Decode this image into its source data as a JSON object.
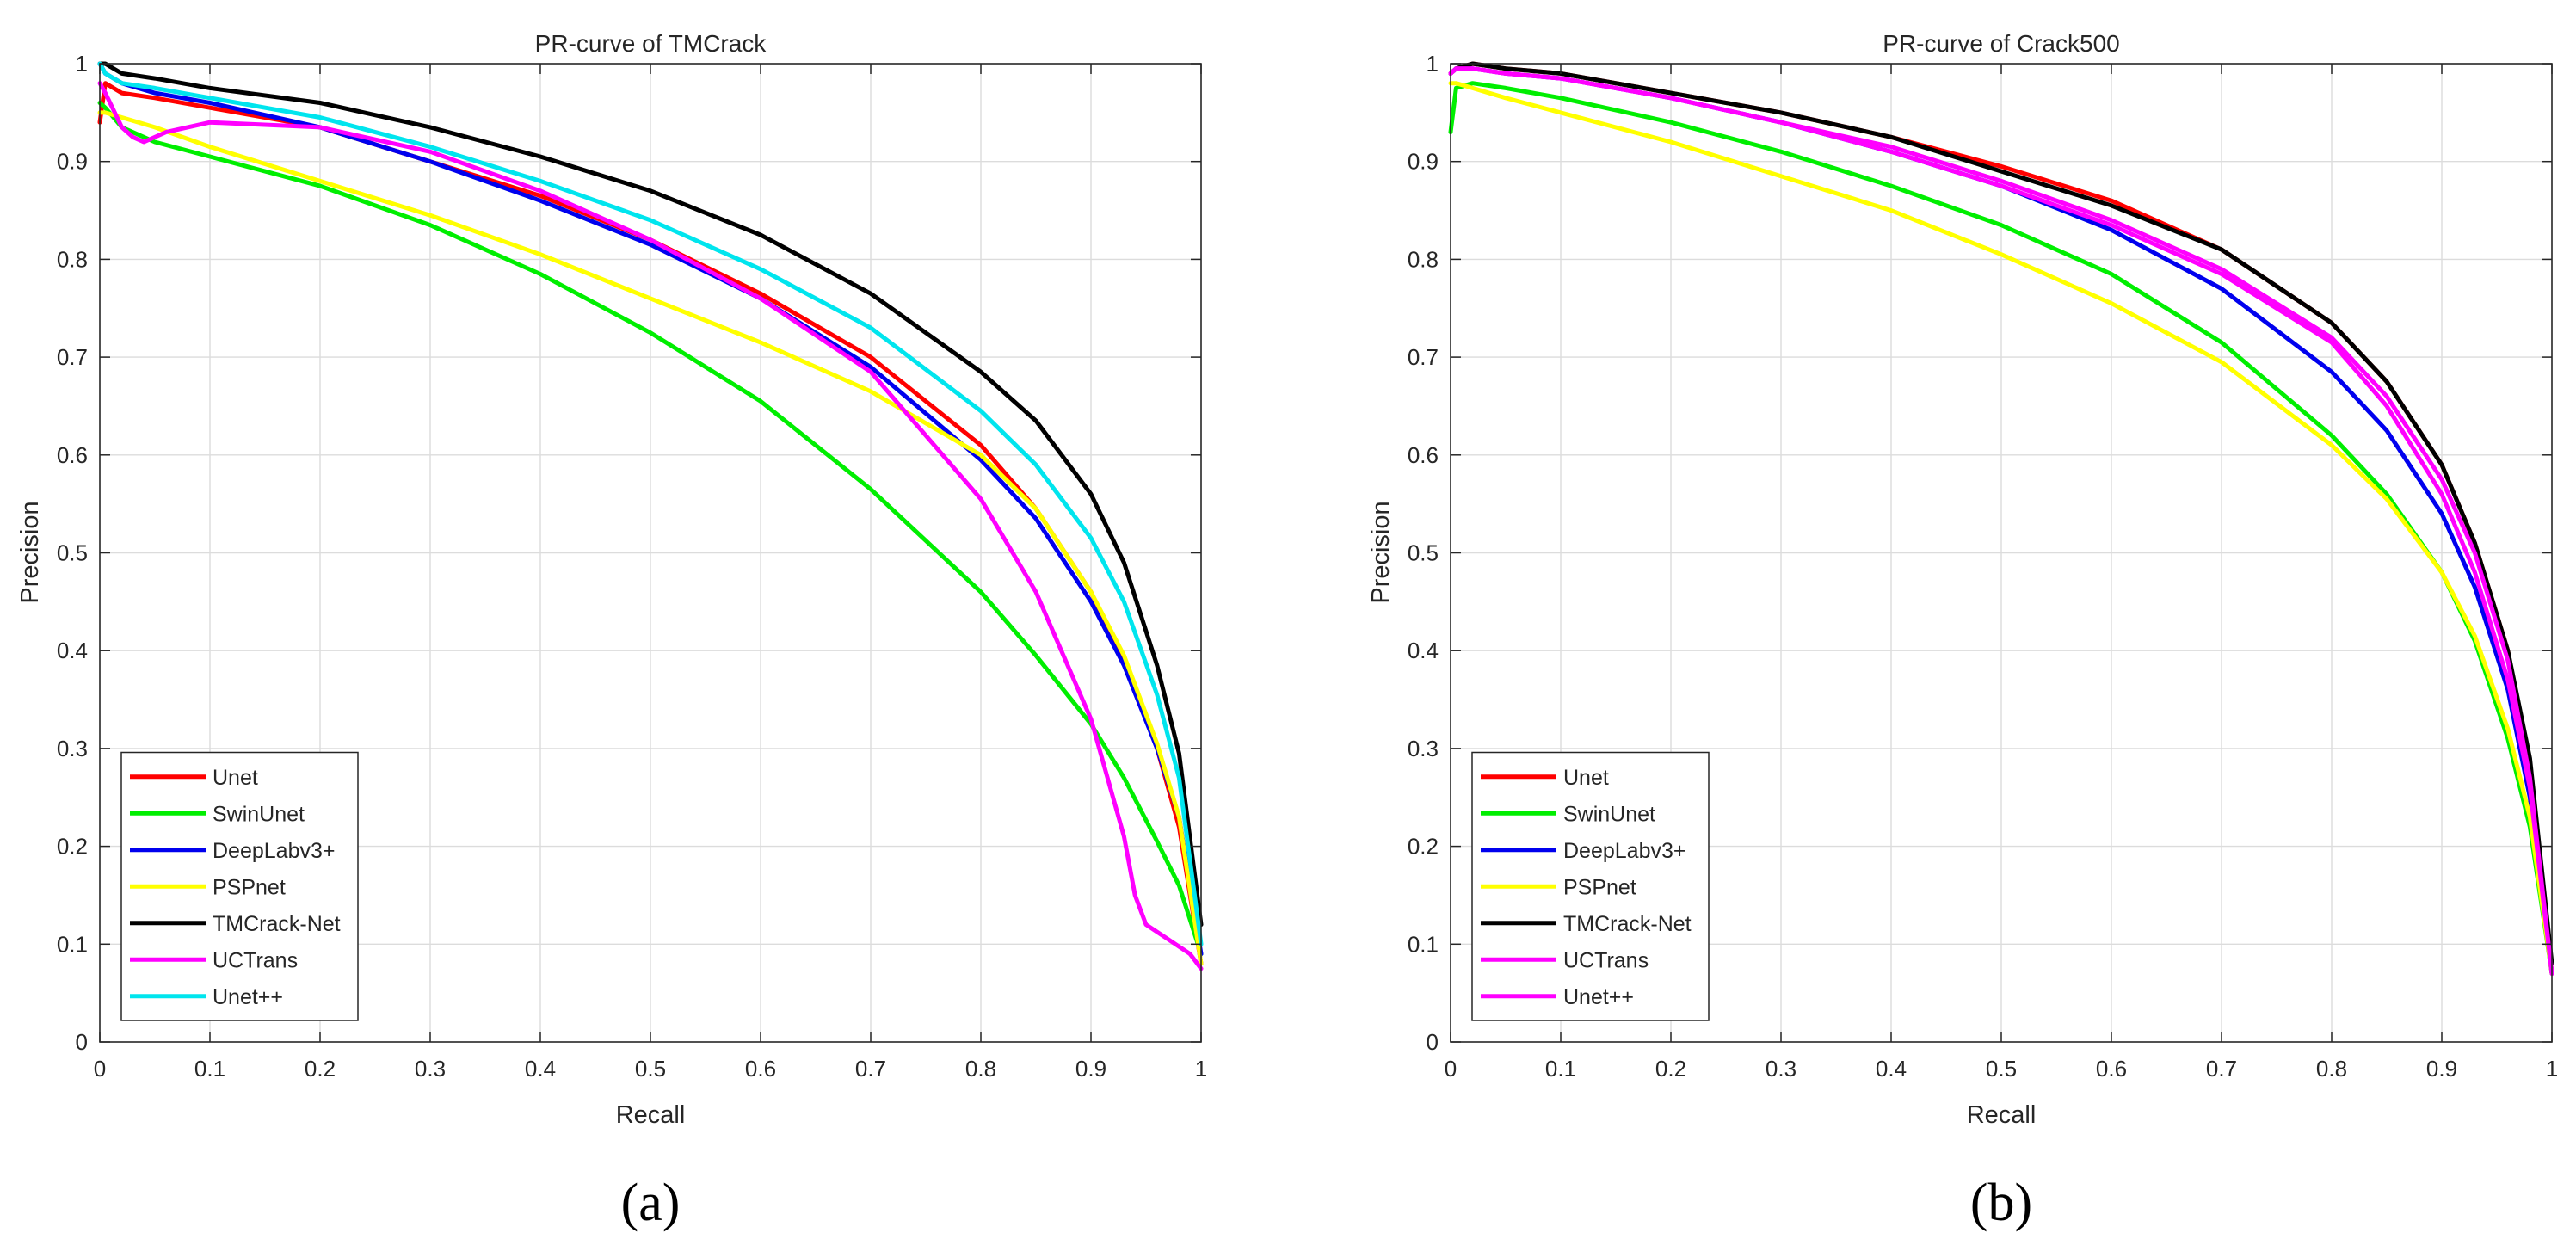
{
  "chart_data": [
    {
      "type": "line",
      "title": "PR-curve of TMCrack",
      "xlabel": "Recall",
      "ylabel": "Precision",
      "xlim": [
        0,
        1
      ],
      "ylim": [
        0,
        1
      ],
      "xticks": [
        "0",
        "0.1",
        "0.2",
        "0.3",
        "0.4",
        "0.5",
        "0.6",
        "0.7",
        "0.8",
        "0.9",
        "1"
      ],
      "yticks": [
        "0",
        "0.1",
        "0.2",
        "0.3",
        "0.4",
        "0.5",
        "0.6",
        "0.7",
        "0.8",
        "0.9",
        "1"
      ],
      "grid": true,
      "legend_position": "bottom-left",
      "panel_label": "(a)",
      "series": [
        {
          "name": "Unet",
          "color": "#ff0000",
          "x": [
            0,
            0.005,
            0.02,
            0.05,
            0.1,
            0.2,
            0.3,
            0.4,
            0.5,
            0.6,
            0.7,
            0.8,
            0.85,
            0.9,
            0.93,
            0.96,
            0.98,
            1.0
          ],
          "y": [
            0.94,
            0.98,
            0.97,
            0.965,
            0.955,
            0.935,
            0.9,
            0.865,
            0.82,
            0.765,
            0.7,
            0.61,
            0.545,
            0.46,
            0.39,
            0.3,
            0.22,
            0.08
          ]
        },
        {
          "name": "SwinUnet",
          "color": "#00ee00",
          "x": [
            0,
            0.005,
            0.02,
            0.05,
            0.1,
            0.2,
            0.3,
            0.4,
            0.5,
            0.6,
            0.7,
            0.8,
            0.85,
            0.9,
            0.93,
            0.96,
            0.98,
            1.0
          ],
          "y": [
            0.96,
            0.955,
            0.935,
            0.92,
            0.905,
            0.875,
            0.835,
            0.785,
            0.725,
            0.655,
            0.565,
            0.46,
            0.395,
            0.325,
            0.27,
            0.205,
            0.16,
            0.09
          ]
        },
        {
          "name": "DeepLabv3+",
          "color": "#0000ee",
          "x": [
            0,
            0.005,
            0.02,
            0.05,
            0.1,
            0.2,
            0.3,
            0.4,
            0.5,
            0.6,
            0.7,
            0.8,
            0.85,
            0.9,
            0.93,
            0.96,
            0.98,
            1.0
          ],
          "y": [
            1.0,
            0.99,
            0.98,
            0.97,
            0.96,
            0.935,
            0.9,
            0.86,
            0.815,
            0.76,
            0.69,
            0.595,
            0.535,
            0.45,
            0.385,
            0.3,
            0.23,
            0.09
          ]
        },
        {
          "name": "PSPnet",
          "color": "#ffff00",
          "x": [
            0,
            0.005,
            0.02,
            0.05,
            0.1,
            0.2,
            0.3,
            0.4,
            0.5,
            0.6,
            0.7,
            0.8,
            0.85,
            0.9,
            0.93,
            0.96,
            0.98,
            1.0
          ],
          "y": [
            0.95,
            0.95,
            0.945,
            0.935,
            0.915,
            0.88,
            0.845,
            0.805,
            0.76,
            0.715,
            0.665,
            0.6,
            0.545,
            0.46,
            0.395,
            0.305,
            0.23,
            0.08
          ]
        },
        {
          "name": "TMCrack-Net",
          "color": "#000000",
          "x": [
            0,
            0.005,
            0.02,
            0.05,
            0.1,
            0.2,
            0.3,
            0.4,
            0.5,
            0.6,
            0.7,
            0.8,
            0.85,
            0.9,
            0.93,
            0.96,
            0.98,
            1.0
          ],
          "y": [
            1.0,
            1.0,
            0.99,
            0.985,
            0.975,
            0.96,
            0.935,
            0.905,
            0.87,
            0.825,
            0.765,
            0.685,
            0.635,
            0.56,
            0.49,
            0.385,
            0.295,
            0.12
          ]
        },
        {
          "name": "UCTrans",
          "color": "#ff00ff",
          "x": [
            0,
            0.005,
            0.02,
            0.03,
            0.04,
            0.06,
            0.1,
            0.2,
            0.3,
            0.4,
            0.5,
            0.6,
            0.7,
            0.8,
            0.85,
            0.9,
            0.93,
            0.94,
            0.95,
            0.97,
            0.99,
            1.0
          ],
          "y": [
            0.98,
            0.97,
            0.935,
            0.925,
            0.92,
            0.93,
            0.94,
            0.935,
            0.91,
            0.87,
            0.82,
            0.76,
            0.685,
            0.555,
            0.46,
            0.33,
            0.21,
            0.15,
            0.12,
            0.105,
            0.09,
            0.075
          ]
        },
        {
          "name": "Unet++",
          "color": "#00e5ee",
          "x": [
            0,
            0.005,
            0.02,
            0.05,
            0.1,
            0.2,
            0.3,
            0.4,
            0.5,
            0.6,
            0.7,
            0.8,
            0.85,
            0.9,
            0.93,
            0.96,
            0.98,
            1.0
          ],
          "y": [
            1.0,
            0.99,
            0.98,
            0.975,
            0.965,
            0.945,
            0.915,
            0.88,
            0.84,
            0.79,
            0.73,
            0.645,
            0.59,
            0.515,
            0.45,
            0.355,
            0.27,
            0.1
          ]
        }
      ]
    },
    {
      "type": "line",
      "title": "PR-curve of Crack500",
      "xlabel": "Recall",
      "ylabel": "Precision",
      "xlim": [
        0,
        1
      ],
      "ylim": [
        0,
        1
      ],
      "xticks": [
        "0",
        "0.1",
        "0.2",
        "0.3",
        "0.4",
        "0.5",
        "0.6",
        "0.7",
        "0.8",
        "0.9",
        "1"
      ],
      "yticks": [
        "0",
        "0.1",
        "0.2",
        "0.3",
        "0.4",
        "0.5",
        "0.6",
        "0.7",
        "0.8",
        "0.9",
        "1"
      ],
      "grid": true,
      "legend_position": "bottom-left",
      "panel_label": "(b)",
      "series": [
        {
          "name": "Unet",
          "color": "#ff0000",
          "x": [
            0,
            0.005,
            0.02,
            0.05,
            0.1,
            0.2,
            0.3,
            0.4,
            0.5,
            0.6,
            0.7,
            0.8,
            0.85,
            0.9,
            0.93,
            0.96,
            0.98,
            1.0
          ],
          "y": [
            0.99,
            0.995,
            1.0,
            0.995,
            0.99,
            0.97,
            0.95,
            0.925,
            0.895,
            0.86,
            0.81,
            0.735,
            0.675,
            0.59,
            0.51,
            0.4,
            0.28,
            0.07
          ]
        },
        {
          "name": "SwinUnet",
          "color": "#00ee00",
          "x": [
            0,
            0.005,
            0.02,
            0.05,
            0.1,
            0.2,
            0.3,
            0.4,
            0.5,
            0.6,
            0.7,
            0.8,
            0.85,
            0.9,
            0.93,
            0.96,
            0.98,
            1.0
          ],
          "y": [
            0.93,
            0.975,
            0.98,
            0.975,
            0.965,
            0.94,
            0.91,
            0.875,
            0.835,
            0.785,
            0.715,
            0.62,
            0.56,
            0.48,
            0.41,
            0.31,
            0.22,
            0.07
          ]
        },
        {
          "name": "DeepLabv3+",
          "color": "#0000ee",
          "x": [
            0,
            0.005,
            0.02,
            0.05,
            0.1,
            0.2,
            0.3,
            0.4,
            0.5,
            0.6,
            0.7,
            0.8,
            0.85,
            0.9,
            0.93,
            0.96,
            0.98,
            1.0
          ],
          "y": [
            0.99,
            0.995,
            0.995,
            0.99,
            0.985,
            0.965,
            0.94,
            0.91,
            0.875,
            0.83,
            0.77,
            0.685,
            0.625,
            0.54,
            0.465,
            0.36,
            0.25,
            0.07
          ]
        },
        {
          "name": "PSPnet",
          "color": "#ffff00",
          "x": [
            0,
            0.005,
            0.02,
            0.05,
            0.1,
            0.2,
            0.3,
            0.4,
            0.5,
            0.6,
            0.7,
            0.8,
            0.85,
            0.9,
            0.93,
            0.96,
            0.98,
            1.0
          ],
          "y": [
            0.98,
            0.98,
            0.975,
            0.965,
            0.95,
            0.92,
            0.885,
            0.85,
            0.805,
            0.755,
            0.695,
            0.61,
            0.555,
            0.48,
            0.415,
            0.32,
            0.23,
            0.07
          ]
        },
        {
          "name": "TMCrack-Net",
          "color": "#000000",
          "x": [
            0,
            0.005,
            0.02,
            0.05,
            0.1,
            0.2,
            0.3,
            0.4,
            0.5,
            0.6,
            0.7,
            0.8,
            0.85,
            0.9,
            0.93,
            0.96,
            0.98,
            1.0
          ],
          "y": [
            0.99,
            0.995,
            1.0,
            0.995,
            0.99,
            0.97,
            0.95,
            0.925,
            0.89,
            0.855,
            0.81,
            0.735,
            0.675,
            0.59,
            0.51,
            0.4,
            0.29,
            0.08
          ]
        },
        {
          "name": "UCTrans",
          "color": "#ff00ff",
          "x": [
            0,
            0.005,
            0.02,
            0.05,
            0.1,
            0.2,
            0.3,
            0.4,
            0.5,
            0.6,
            0.7,
            0.8,
            0.85,
            0.9,
            0.93,
            0.96,
            0.98,
            1.0
          ],
          "y": [
            0.99,
            0.995,
            0.995,
            0.99,
            0.985,
            0.965,
            0.94,
            0.91,
            0.875,
            0.835,
            0.785,
            0.715,
            0.65,
            0.56,
            0.48,
            0.37,
            0.26,
            0.07
          ]
        },
        {
          "name": "Unet++",
          "color": "#ff00ff",
          "x": [
            0,
            0.005,
            0.02,
            0.05,
            0.1,
            0.2,
            0.3,
            0.4,
            0.5,
            0.6,
            0.7,
            0.8,
            0.85,
            0.9,
            0.93,
            0.96,
            0.98,
            1.0
          ],
          "y": [
            0.99,
            0.995,
            0.995,
            0.99,
            0.985,
            0.965,
            0.94,
            0.915,
            0.88,
            0.84,
            0.79,
            0.72,
            0.66,
            0.575,
            0.5,
            0.39,
            0.27,
            0.07
          ]
        }
      ]
    }
  ]
}
